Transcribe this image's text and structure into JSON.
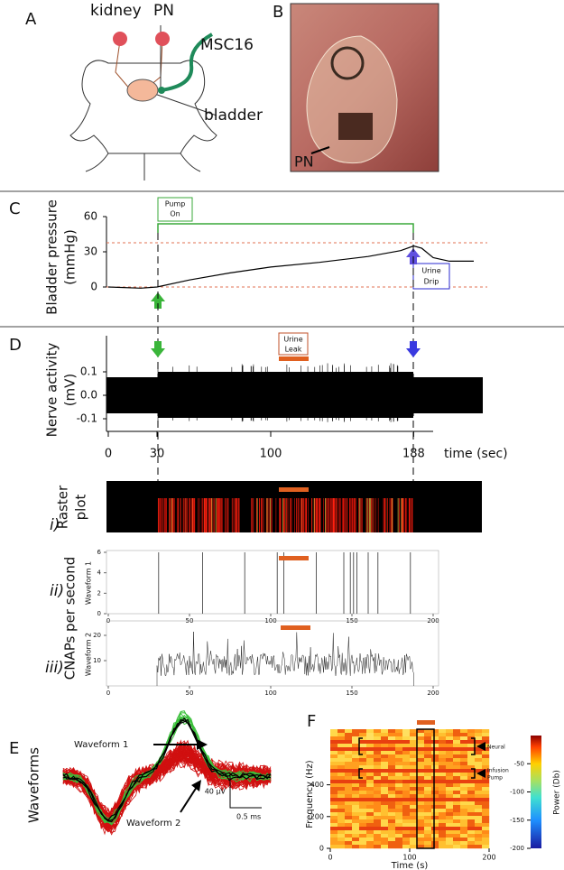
{
  "panels": {
    "A": {
      "label": "A",
      "kidney": "kidney",
      "pn": "PN",
      "msc16": "MSC16",
      "bladder": "bladder"
    },
    "B": {
      "label": "B",
      "pn": "PN"
    },
    "C": {
      "label": "C",
      "ylabel": [
        "Bladder pressure",
        "(mmHg)"
      ],
      "ylim": [
        0,
        60
      ],
      "yticks": [
        0,
        30,
        60
      ],
      "pump_on": [
        "Pump",
        "On"
      ],
      "urine_drip": [
        "Urine",
        "Drip"
      ],
      "trace": {
        "x": [
          0,
          20,
          30,
          50,
          75,
          100,
          130,
          160,
          180,
          188,
          193,
          200,
          210,
          225
        ],
        "values": [
          0,
          -1,
          0,
          6,
          12,
          17,
          21,
          26,
          31,
          35,
          33,
          25,
          22,
          22
        ]
      }
    },
    "D": {
      "label": "D",
      "ylabel": [
        "Nerve activity",
        "(mV)"
      ],
      "yticks": [
        0.1,
        {
          "value": 0,
          "label": "0.0"
        },
        -0.1
      ],
      "xticks": [
        0,
        30,
        100,
        188
      ],
      "xlabel": "time (sec)",
      "urine_leak": [
        "Urine",
        "Leak"
      ]
    },
    "i": {
      "label": "i)",
      "ylabel": [
        "Raster",
        "plot"
      ]
    },
    "cnaps": "CNAPs per second",
    "ii": {
      "label": "ii)",
      "ylabel": "Waveform 1",
      "ylim": [
        0,
        6
      ],
      "yticks": [
        0,
        2,
        4,
        6
      ],
      "xlim": [
        0,
        200
      ],
      "xticks": [
        0,
        50,
        100,
        150,
        200
      ],
      "spikes": {
        "x": [
          31,
          58,
          84,
          104,
          108,
          128,
          145,
          149,
          151,
          153,
          160,
          166,
          186
        ],
        "values": [
          6,
          6,
          6,
          6,
          6,
          6,
          6,
          6,
          6,
          6,
          6,
          6,
          6
        ]
      }
    },
    "iii": {
      "label": "iii)",
      "ylabel": "Waveform 2",
      "ylim": [
        0,
        25
      ],
      "yticks": [
        10,
        20
      ],
      "xlim": [
        0,
        200
      ],
      "xticks": [
        0,
        50,
        100,
        150,
        200
      ]
    },
    "E": {
      "label": "E",
      "ylabel": "Waveforms",
      "waveform1": "Waveform 1",
      "waveform2": "Waveform 2",
      "scale_v": "40 µV",
      "scale_t": "0.5 ms"
    },
    "F": {
      "label": "F",
      "ylabel": "Frequency (Hz)",
      "xlabel": "Time (s)",
      "ylim": [
        0,
        750
      ],
      "yticks": [
        0,
        200,
        400
      ],
      "xlim": [
        0,
        200
      ],
      "xticks": [
        0,
        100,
        200
      ],
      "neural": "Neural",
      "infusion_pump": [
        "Infusion",
        "Pump"
      ],
      "colorbar_label": "Power (Db)",
      "clim": [
        -200,
        0
      ],
      "colorbar_ticks": [
        -50,
        -100,
        -150,
        -200
      ]
    }
  }
}
